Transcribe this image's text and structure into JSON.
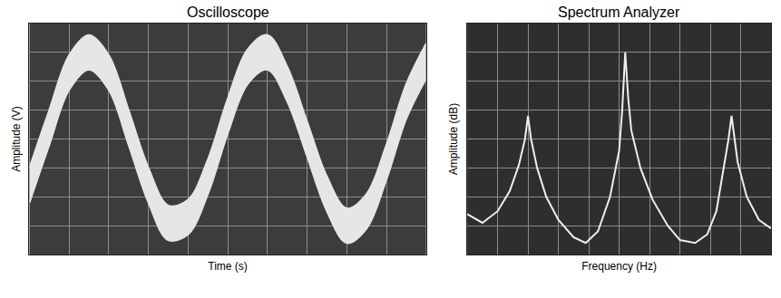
{
  "chart_data": [
    {
      "type": "band",
      "title": "Oscilloscope",
      "x_label": "Time (s)",
      "y_label": "Amplitude (V)",
      "x": [
        0,
        0.5,
        1,
        1.5,
        2,
        2.5,
        3,
        3.5,
        4,
        4.5,
        5,
        5.5,
        6,
        6.5,
        7,
        7.5,
        8,
        8.5,
        9,
        9.5,
        10
      ],
      "series": [
        {
          "values": [
            -1.0,
            1.0,
            2.9,
            3.6,
            2.9,
            1.0,
            -1.0,
            -2.3,
            -2.1,
            -0.7,
            1.4,
            3.1,
            3.6,
            2.5,
            0.6,
            -1.3,
            -2.4,
            -1.9,
            -0.2,
            1.9,
            3.3
          ]
        },
        {
          "values": [
            -2.2,
            -0.2,
            1.7,
            2.4,
            1.7,
            -0.2,
            -2.2,
            -3.5,
            -3.3,
            -1.9,
            0.2,
            1.9,
            2.4,
            1.3,
            -0.6,
            -2.5,
            -3.6,
            -3.1,
            -1.4,
            0.7,
            2.1
          ]
        }
      ],
      "color": "#e6e6e6",
      "xlim": [
        0,
        10
      ],
      "ylim": [
        -4,
        4
      ],
      "xticks": [
        0,
        1,
        2,
        3,
        4,
        5,
        6,
        7,
        8,
        9,
        10
      ],
      "yticks": [
        -4,
        -3,
        -2,
        -1,
        0,
        1,
        2,
        3,
        4
      ],
      "grid": true,
      "tick_labels": false
    },
    {
      "type": "line",
      "title": "Spectrum Analyzer",
      "x_label": "Frequency (Hz)",
      "y_label": "Amplitude (dB)",
      "x": [
        0,
        0.5,
        1,
        1.4,
        1.7,
        1.9,
        2.0,
        2.1,
        2.3,
        2.6,
        3.0,
        3.5,
        3.9,
        4.3,
        4.7,
        5.0,
        5.1,
        5.2,
        5.3,
        5.4,
        5.7,
        6.1,
        6.6,
        7.0,
        7.5,
        7.9,
        8.2,
        8.5,
        8.6,
        8.7,
        8.8,
        8.9,
        9.2,
        9.6,
        10
      ],
      "series": [
        {
          "values": [
            1.4,
            1.1,
            1.5,
            2.2,
            3.1,
            4.0,
            4.8,
            4.0,
            3.0,
            2.0,
            1.2,
            0.6,
            0.4,
            0.8,
            2.0,
            3.6,
            5.0,
            7.0,
            5.4,
            4.3,
            3.0,
            1.9,
            1.0,
            0.5,
            0.4,
            0.7,
            1.5,
            3.3,
            4.0,
            4.8,
            4.0,
            3.2,
            2.0,
            1.2,
            0.9
          ]
        }
      ],
      "color": "#eeeeee",
      "xlim": [
        0,
        10
      ],
      "ylim": [
        0,
        8
      ],
      "xticks": [
        0,
        1,
        2,
        3,
        4,
        5,
        6,
        7,
        8,
        9,
        10
      ],
      "yticks": [
        0,
        1,
        2,
        3,
        4,
        5,
        6,
        7,
        8
      ],
      "grid": true,
      "tick_labels": false
    }
  ]
}
